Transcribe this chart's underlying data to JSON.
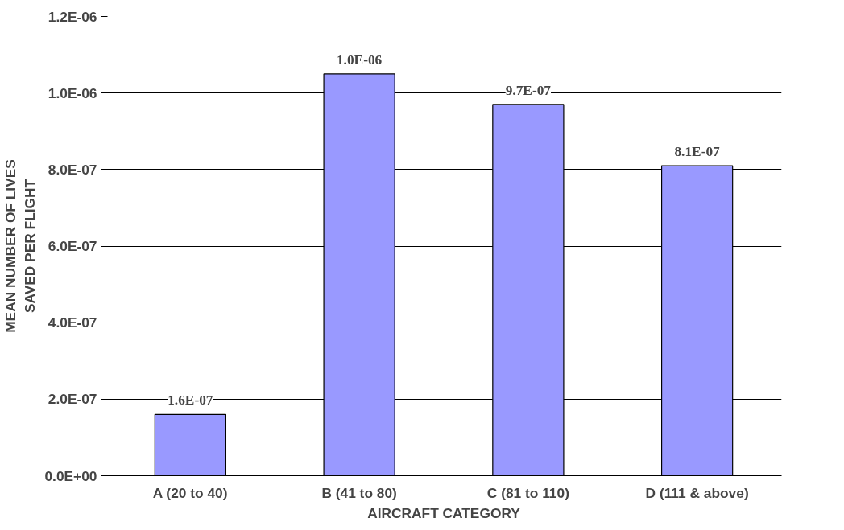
{
  "chart_data": {
    "type": "bar",
    "xlabel": "AIRCRAFT CATEGORY",
    "ylabel": "MEAN NUMBER OF LIVES\nSAVED PER FLIGHT",
    "categories": [
      "A (20 to 40)",
      "B (41 to 80)",
      "C (81 to 110)",
      "D (111 & above)"
    ],
    "values": [
      1.6e-07,
      1.05e-06,
      9.7e-07,
      8.1e-07
    ],
    "value_labels": [
      "1.6E-07",
      "1.0E-06",
      "9.7E-07",
      "8.1E-07"
    ],
    "color": "#9999ff",
    "ylim": [
      0,
      1.2e-06
    ],
    "yticks": [
      {
        "value": 0,
        "label": "0.0E+00"
      },
      {
        "value": 2e-07,
        "label": "2.0E-07"
      },
      {
        "value": 4e-07,
        "label": "4.0E-07"
      },
      {
        "value": 6e-07,
        "label": "6.0E-07"
      },
      {
        "value": 8e-07,
        "label": "8.0E-07"
      },
      {
        "value": 1e-06,
        "label": "1.0E-06"
      },
      {
        "value": 1.2e-06,
        "label": "1.2E-06"
      }
    ],
    "grid": "y"
  }
}
